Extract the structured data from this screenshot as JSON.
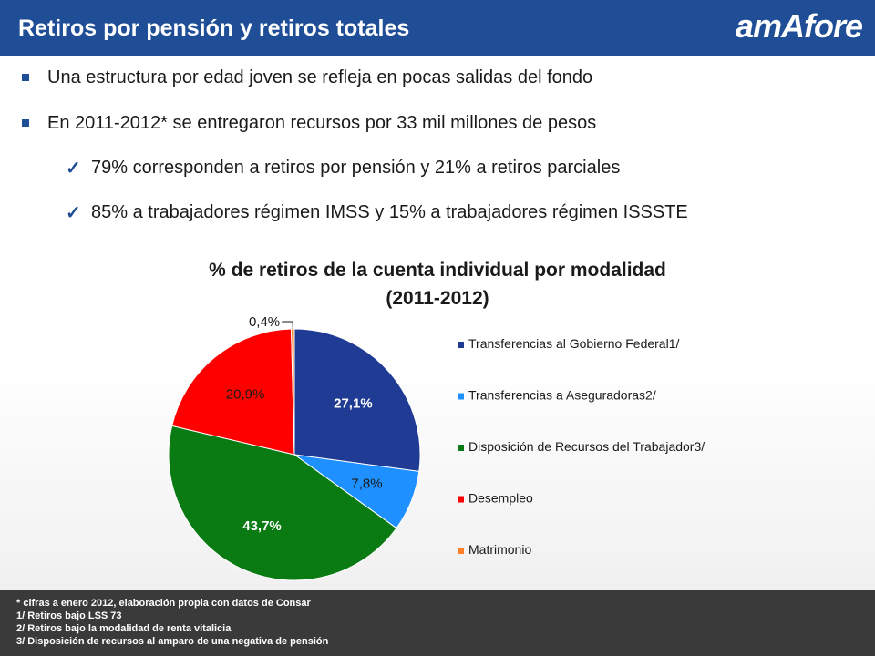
{
  "header": {
    "title": "Retiros por pensión y retiros totales",
    "logo_text": "amAfore",
    "bg_color": "#1f4e96"
  },
  "bullets": [
    {
      "level": 1,
      "text": "Una estructura por edad joven se refleja en pocas salidas del fondo"
    },
    {
      "level": 1,
      "text": "En 2011-2012* se entregaron recursos por 33 mil millones de pesos"
    },
    {
      "level": 2,
      "text": "79% corresponden a retiros por pensión y 21% a retiros parciales"
    },
    {
      "level": 2,
      "text": "85% a trabajadores régimen IMSS y 15% a trabajadores régimen ISSSTE"
    }
  ],
  "chart_data": {
    "type": "pie",
    "title_line1": "% de retiros de la cuenta individual por modalidad",
    "title_line2": "(2011-2012)",
    "legend_position": "right",
    "slices": [
      {
        "name": "Transferencias al Gobierno Federal1/",
        "value": 27.1,
        "label": "27,1%",
        "color": "#1f3b94",
        "label_color": "#ffffff"
      },
      {
        "name": "Transferencias a Aseguradoras2/",
        "value": 7.8,
        "label": "7,8%",
        "color": "#1e90ff",
        "label_color": "#1a1a1a"
      },
      {
        "name": "Disposición de Recursos del Trabajador3/",
        "value": 43.7,
        "label": "43,7%",
        "color": "#0a7a12",
        "label_color": "#ffffff"
      },
      {
        "name": "Desempleo",
        "value": 20.9,
        "label": "20,9%",
        "color": "#ff0000",
        "label_color": "#1a1a1a"
      },
      {
        "name": "Matrimonio",
        "value": 0.4,
        "label": "0,4%",
        "color": "#ff7f27",
        "label_color": "#1a1a1a"
      }
    ]
  },
  "footnotes": [
    "* cifras a enero 2012, elaboración propia con datos de Consar",
    "1/ Retiros bajo LSS 73",
    "2/ Retiros bajo la modalidad de renta vitalicia",
    "3/ Disposición de recursos al amparo de una negativa de pensión"
  ]
}
